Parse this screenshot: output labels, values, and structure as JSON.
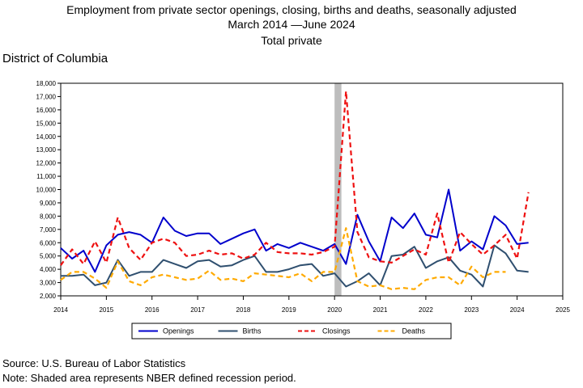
{
  "chart_data": {
    "type": "line",
    "title": "Employment from private sector openings, closing, births and deaths, seasonally adjusted",
    "subtitle": "March 2014 —June 2024",
    "subtitle2": "Total private",
    "region_label": "District of Columbia",
    "x_start": 2014.0,
    "x_step": 0.25,
    "xlim": [
      2014,
      2025
    ],
    "ylim": [
      2000,
      18000
    ],
    "x_ticks": [
      "2014",
      "2015",
      "2016",
      "2017",
      "2018",
      "2019",
      "2020",
      "2021",
      "2022",
      "2023",
      "2024",
      "2025"
    ],
    "y_ticks": [
      "2,000",
      "3,000",
      "4,000",
      "5,000",
      "6,000",
      "7,000",
      "8,000",
      "9,000",
      "10,000",
      "11,000",
      "12,000",
      "13,000",
      "14,000",
      "15,000",
      "16,000",
      "17,000",
      "18,000"
    ],
    "recession": [
      2020.0,
      2020.15
    ],
    "series": [
      {
        "name": "Openings",
        "color": "#0000cc",
        "dash": "solid",
        "values": [
          5600,
          4800,
          5400,
          3800,
          5800,
          6600,
          6800,
          6600,
          6000,
          7900,
          6900,
          6500,
          6700,
          6700,
          5900,
          6300,
          6700,
          7000,
          5400,
          5900,
          5600,
          6000,
          5700,
          5400,
          5900,
          4400,
          8100,
          6100,
          4600,
          7900,
          7100,
          8200,
          6600,
          6400,
          10000,
          5400,
          6100,
          5500,
          8000,
          7300,
          5900,
          6000
        ]
      },
      {
        "name": "Births",
        "color": "#2f4f6f",
        "dash": "solid",
        "values": [
          3500,
          3500,
          3600,
          2800,
          3000,
          4700,
          3500,
          3800,
          3800,
          4700,
          4400,
          4100,
          4600,
          4700,
          4200,
          4300,
          4700,
          5000,
          3800,
          3800,
          4000,
          4300,
          4400,
          3500,
          3700,
          2700,
          3100,
          3700,
          2800,
          5000,
          5100,
          5700,
          4100,
          4600,
          4900,
          3900,
          3600,
          2700,
          5800,
          5200,
          3900,
          3800
        ]
      },
      {
        "name": "Closings",
        "color": "#ee1111",
        "dash": "dashed",
        "values": [
          4300,
          5500,
          4400,
          6100,
          4500,
          7900,
          5600,
          4700,
          6000,
          6300,
          6000,
          5000,
          5100,
          5400,
          5100,
          5200,
          4800,
          5100,
          6000,
          5300,
          5200,
          5200,
          5100,
          5300,
          5700,
          17400,
          6800,
          4900,
          4600,
          4500,
          5000,
          5500,
          5100,
          8200,
          4500,
          6800,
          5900,
          5100,
          5800,
          6600,
          4800,
          9800
        ]
      },
      {
        "name": "Deaths",
        "color": "#ffaa00",
        "dash": "dashed",
        "values": [
          3200,
          3800,
          3800,
          3300,
          2600,
          4600,
          3100,
          2800,
          3400,
          3600,
          3400,
          3200,
          3300,
          3900,
          3200,
          3300,
          3100,
          3700,
          3600,
          3500,
          3400,
          3700,
          3100,
          3800,
          3800,
          7100,
          3100,
          2700,
          2800,
          2500,
          2600,
          2500,
          3200,
          3400,
          3400,
          2800,
          4200,
          3400,
          3800,
          3800
        ]
      }
    ]
  },
  "source_text": "Source: U.S. Bureau of Labor Statistics",
  "note_text": "Note: Shaded area represents NBER defined recession period."
}
